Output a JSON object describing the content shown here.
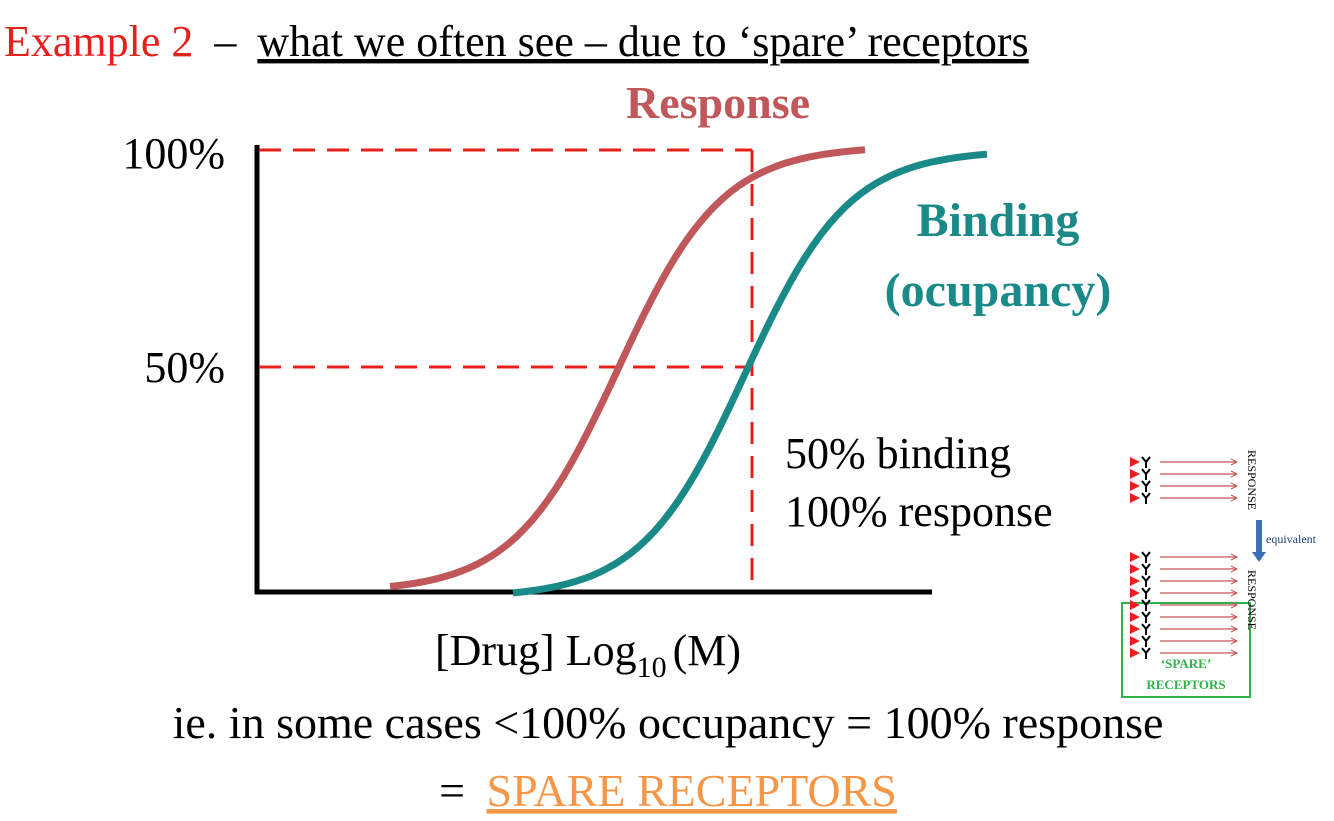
{
  "title": {
    "example": "Example 2",
    "dash": "–",
    "text": "what we often see – due to ‘spare’ receptors"
  },
  "diagram": {
    "response_label": "Response",
    "y_labels": [
      "100%",
      "50%"
    ],
    "binding_label": [
      "Binding",
      "(ocupancy)"
    ],
    "note": [
      "50% binding",
      "100% response"
    ],
    "x_label": {
      "main": "[Drug] Log",
      "sub": "10",
      "unit": "(M)"
    }
  },
  "inset": {
    "response": [
      "RESPONSE",
      "RESPONSE"
    ],
    "equivalent": "equivalent",
    "spare": [
      "‘SPARE’",
      "RECEPTORS"
    ]
  },
  "footer": {
    "line1": "ie. in some cases <100% occupancy = 100% response",
    "eq": "=",
    "spare": "SPARE RECEPTORS"
  }
}
